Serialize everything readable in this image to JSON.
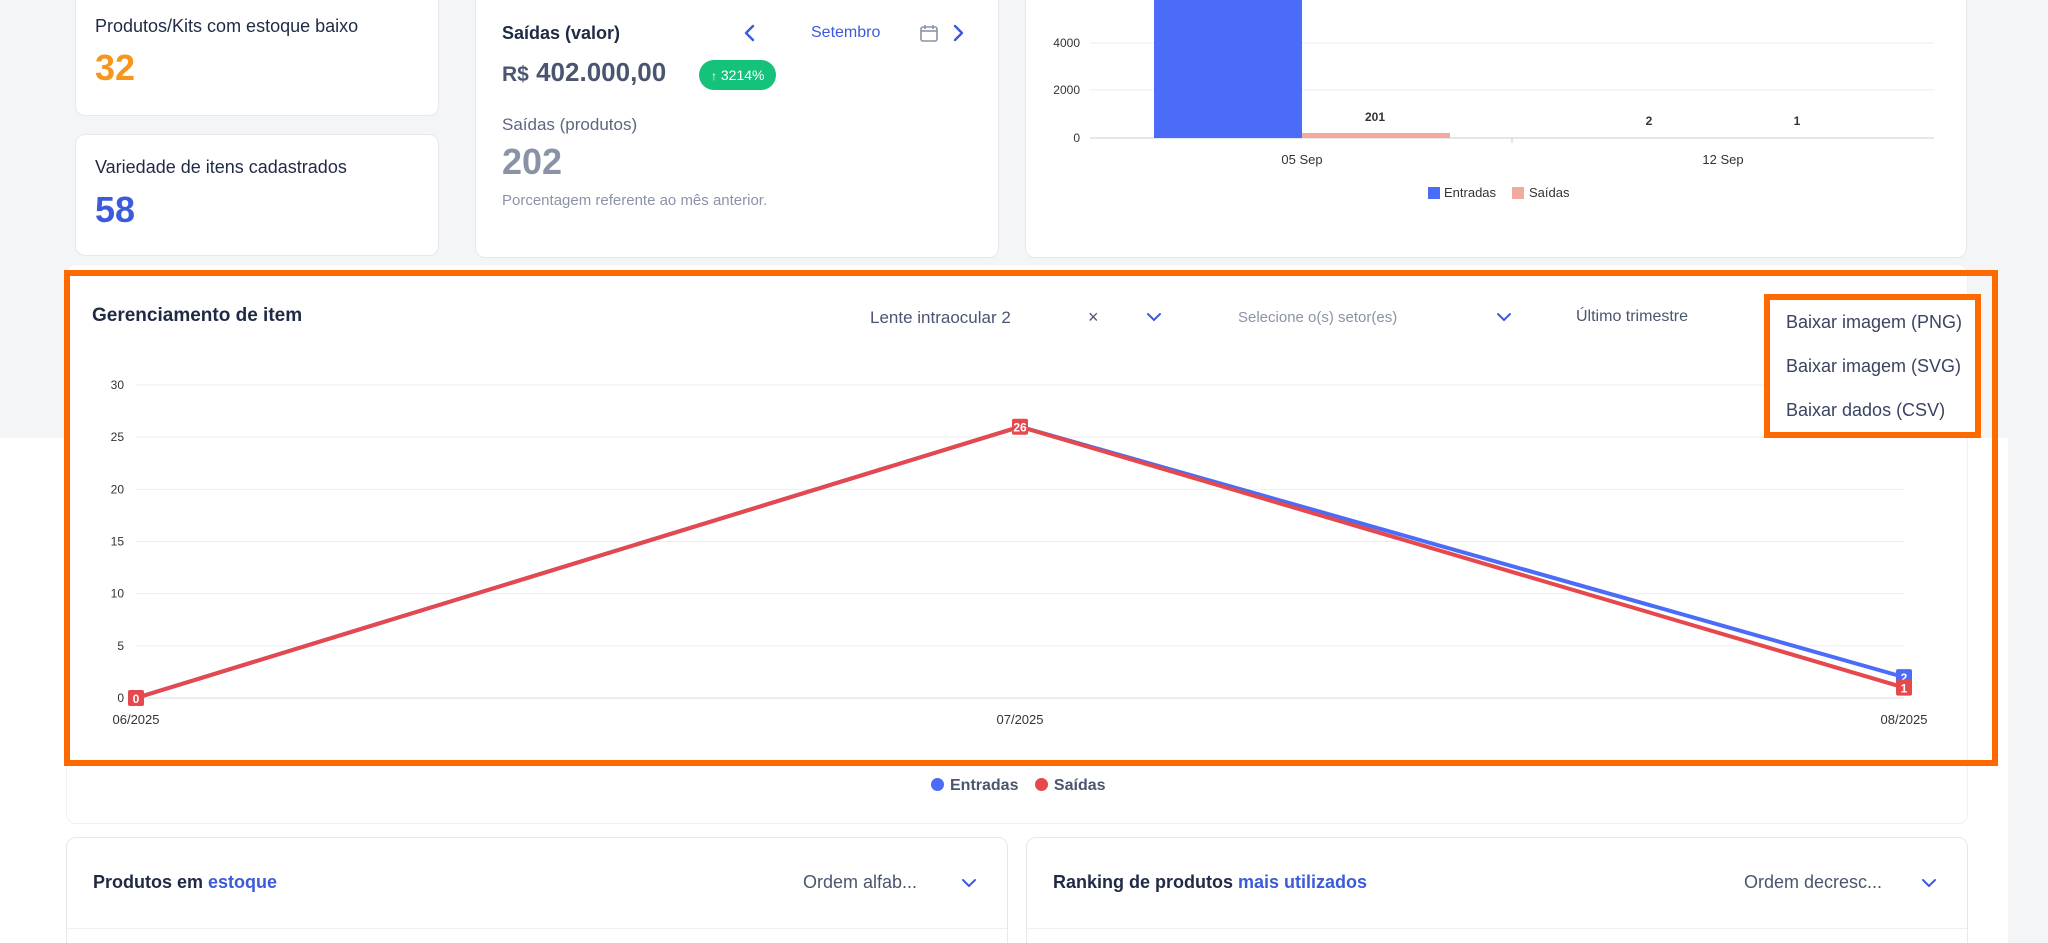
{
  "kpis": {
    "low_stock": {
      "label": "Produtos/Kits com estoque baixo",
      "value": "32"
    },
    "variety": {
      "label": "Variedade de itens cadastrados",
      "value": "58"
    }
  },
  "saidas_card": {
    "title": "Saídas (valor)",
    "month": "Setembro",
    "currency": "R$",
    "amount": "402.000,00",
    "badge": "3214%",
    "products_label": "Saídas (produtos)",
    "products_value": "202",
    "note": "Porcentagem referente ao mês anterior."
  },
  "top_chart": {
    "y_ticks": [
      "4000",
      "2000",
      "0"
    ],
    "x_ticks": [
      "05 Sep",
      "12 Sep"
    ],
    "data_labels": [
      "201",
      "2",
      "1"
    ],
    "legend": [
      "Entradas",
      "Saídas"
    ],
    "colors": {
      "entradas": "#4a6cf7",
      "saidas": "#f4a9a0"
    }
  },
  "item_mgmt": {
    "title": "Gerenciamento de item",
    "selected_item": "Lente intraocular 2",
    "clear_symbol": "×",
    "sector_placeholder": "Selecione o(s) setor(es)",
    "period": "Último trimestre",
    "export_menu": [
      "Baixar imagem (PNG)",
      "Baixar imagem (SVG)",
      "Baixar dados (CSV)"
    ]
  },
  "chart_data": {
    "type": "line",
    "x": [
      "06/2025",
      "07/2025",
      "08/2025"
    ],
    "series": [
      {
        "name": "Entradas",
        "values": [
          0,
          26,
          2
        ],
        "color": "#4a6cf7"
      },
      {
        "name": "Saídas",
        "values": [
          0,
          26,
          1
        ],
        "color": "#e5484d"
      }
    ],
    "ylim": [
      0,
      30
    ],
    "y_ticks": [
      0,
      5,
      10,
      15,
      20,
      25,
      30
    ],
    "grid": true,
    "legend": "bottom"
  },
  "bottom_left": {
    "title_prefix": "Produtos em ",
    "title_accent": "estoque",
    "sort": "Ordem alfab..."
  },
  "bottom_right": {
    "title_prefix": "Ranking de produtos ",
    "title_accent": "mais utilizados",
    "sort": "Ordem decresc..."
  }
}
